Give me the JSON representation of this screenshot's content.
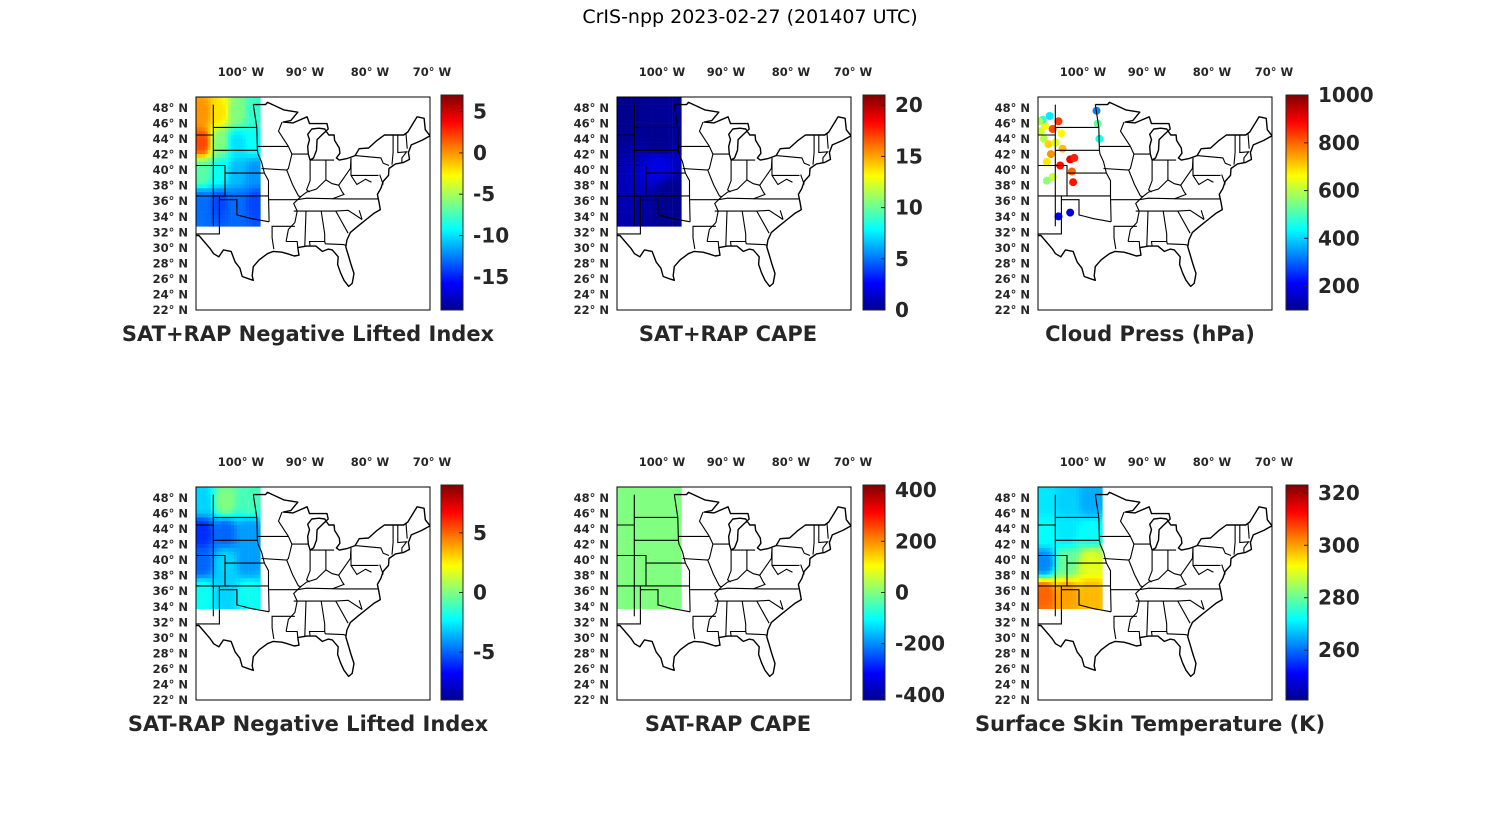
{
  "figure": {
    "title": "CrIS-npp 2023-02-27 (201407 UTC)"
  },
  "colormap": {
    "name": "jet",
    "stops": [
      "#00008f",
      "#0000ff",
      "#0080ff",
      "#00ffff",
      "#80ff80",
      "#ffff00",
      "#ff8000",
      "#ff0000",
      "#800000"
    ]
  },
  "chart_data": [
    {
      "type": "heatmap",
      "title": "SAT+RAP Negative Lifted Index",
      "map_extent": {
        "lon": [
          -107,
          -67
        ],
        "lat": [
          22,
          50
        ]
      },
      "x_ticks": [
        "100° W",
        "90° W",
        "80° W",
        "70° W"
      ],
      "y_ticks": [
        "48° N",
        "46° N",
        "44° N",
        "42° N",
        "40° N",
        "38° N",
        "36° N",
        "34° N",
        "32° N",
        "30° N",
        "28° N",
        "26° N",
        "24° N",
        "22° N"
      ],
      "colorbar": {
        "range": [
          -19,
          7
        ],
        "ticks": [
          5,
          0,
          -5,
          -10,
          -15
        ]
      },
      "data_region": {
        "lon": [
          -107,
          -96
        ],
        "lat": [
          33,
          50
        ]
      },
      "field_samples": [
        {
          "lon": -106,
          "lat": 48,
          "value": 0
        },
        {
          "lon": -103,
          "lat": 48,
          "value": -2
        },
        {
          "lon": -100,
          "lat": 48,
          "value": -6
        },
        {
          "lon": -97,
          "lat": 48,
          "value": -8
        },
        {
          "lon": -106,
          "lat": 44,
          "value": 2
        },
        {
          "lon": -103,
          "lat": 44,
          "value": -6
        },
        {
          "lon": -100,
          "lat": 44,
          "value": -10
        },
        {
          "lon": -97,
          "lat": 44,
          "value": -9
        },
        {
          "lon": -106,
          "lat": 40,
          "value": -7
        },
        {
          "lon": -103,
          "lat": 40,
          "value": -9
        },
        {
          "lon": -100,
          "lat": 40,
          "value": -11
        },
        {
          "lon": -97,
          "lat": 40,
          "value": -12
        },
        {
          "lon": -106,
          "lat": 36,
          "value": -13
        },
        {
          "lon": -103,
          "lat": 36,
          "value": -14
        },
        {
          "lon": -100,
          "lat": 36,
          "value": -13
        },
        {
          "lon": -97,
          "lat": 36,
          "value": -14
        }
      ]
    },
    {
      "type": "heatmap",
      "title": "SAT+RAP CAPE",
      "map_extent": {
        "lon": [
          -107,
          -67
        ],
        "lat": [
          22,
          50
        ]
      },
      "x_ticks": [
        "100° W",
        "90° W",
        "80° W",
        "70° W"
      ],
      "y_ticks": [
        "48° N",
        "46° N",
        "44° N",
        "42° N",
        "40° N",
        "38° N",
        "36° N",
        "34° N",
        "32° N",
        "30° N",
        "28° N",
        "26° N",
        "24° N",
        "22° N"
      ],
      "colorbar": {
        "range": [
          0,
          21
        ],
        "ticks": [
          20,
          15,
          10,
          5,
          0
        ]
      },
      "data_region": {
        "lon": [
          -107,
          -96
        ],
        "lat": [
          33,
          50
        ]
      },
      "field_samples": [
        {
          "lon": -106,
          "lat": 48,
          "value": 0
        },
        {
          "lon": -100,
          "lat": 44,
          "value": 0
        },
        {
          "lon": -100,
          "lat": 41,
          "value": 2
        },
        {
          "lon": -98,
          "lat": 37,
          "value": 0
        }
      ]
    },
    {
      "type": "scatter",
      "title": "Cloud Press (hPa)",
      "map_extent": {
        "lon": [
          -107,
          -67
        ],
        "lat": [
          22,
          50
        ]
      },
      "x_ticks": [
        "100° W",
        "90° W",
        "80° W",
        "70° W"
      ],
      "y_ticks": [
        "48° N",
        "46° N",
        "44° N",
        "42° N",
        "40° N",
        "38° N",
        "36° N",
        "34° N",
        "32° N",
        "30° N",
        "28° N",
        "26° N",
        "24° N",
        "22° N"
      ],
      "colorbar": {
        "range": [
          100,
          1000
        ],
        "ticks": [
          1000,
          800,
          600,
          400,
          200
        ]
      },
      "points": [
        {
          "lon": -106.5,
          "lat": 45.5,
          "value": 620
        },
        {
          "lon": -105.8,
          "lat": 46.2,
          "value": 650
        },
        {
          "lon": -104.5,
          "lat": 45.8,
          "value": 820
        },
        {
          "lon": -106.0,
          "lat": 44.5,
          "value": 600
        },
        {
          "lon": -105.2,
          "lat": 43.8,
          "value": 700
        },
        {
          "lon": -104.0,
          "lat": 44.0,
          "value": 640
        },
        {
          "lon": -103.0,
          "lat": 45.2,
          "value": 660
        },
        {
          "lon": -103.5,
          "lat": 46.8,
          "value": 840
        },
        {
          "lon": -102.8,
          "lat": 43.2,
          "value": 720
        },
        {
          "lon": -104.8,
          "lat": 42.5,
          "value": 760
        },
        {
          "lon": -105.5,
          "lat": 41.5,
          "value": 680
        },
        {
          "lon": -103.2,
          "lat": 41.0,
          "value": 880
        },
        {
          "lon": -101.5,
          "lat": 41.8,
          "value": 900
        },
        {
          "lon": -100.8,
          "lat": 42.0,
          "value": 860
        },
        {
          "lon": -101.2,
          "lat": 40.2,
          "value": 800
        },
        {
          "lon": -101.0,
          "lat": 38.8,
          "value": 870
        },
        {
          "lon": -104.5,
          "lat": 39.5,
          "value": 620
        },
        {
          "lon": -105.5,
          "lat": 39.0,
          "value": 560
        },
        {
          "lon": -97.0,
          "lat": 48.2,
          "value": 330
        },
        {
          "lon": -96.8,
          "lat": 46.5,
          "value": 520
        },
        {
          "lon": -96.5,
          "lat": 44.5,
          "value": 460
        },
        {
          "lon": -105.0,
          "lat": 47.5,
          "value": 420
        },
        {
          "lon": -106.2,
          "lat": 47.0,
          "value": 470
        },
        {
          "lon": -106.8,
          "lat": 46.8,
          "value": 590
        },
        {
          "lon": -101.5,
          "lat": 34.8,
          "value": 180
        },
        {
          "lon": -103.5,
          "lat": 34.3,
          "value": 200
        }
      ]
    },
    {
      "type": "heatmap",
      "title": "SAT-RAP Negative Lifted Index",
      "map_extent": {
        "lon": [
          -107,
          -67
        ],
        "lat": [
          22,
          50
        ]
      },
      "x_ticks": [
        "100° W",
        "90° W",
        "80° W",
        "70° W"
      ],
      "y_ticks": [
        "48° N",
        "46° N",
        "44° N",
        "42° N",
        "40° N",
        "38° N",
        "36° N",
        "34° N",
        "32° N",
        "30° N",
        "28° N",
        "26° N",
        "24° N",
        "22° N"
      ],
      "colorbar": {
        "range": [
          -9,
          9
        ],
        "ticks": [
          5,
          0,
          -5
        ]
      },
      "data_region": {
        "lon": [
          -107,
          -96
        ],
        "lat": [
          34,
          50
        ]
      },
      "field_samples": [
        {
          "lon": -106,
          "lat": 48,
          "value": -3
        },
        {
          "lon": -102,
          "lat": 48,
          "value": 0
        },
        {
          "lon": -98,
          "lat": 48,
          "value": -1
        },
        {
          "lon": -106,
          "lat": 44,
          "value": -6
        },
        {
          "lon": -102,
          "lat": 44,
          "value": -5
        },
        {
          "lon": -98,
          "lat": 44,
          "value": -4
        },
        {
          "lon": -106,
          "lat": 40,
          "value": -5
        },
        {
          "lon": -102,
          "lat": 40,
          "value": -3
        },
        {
          "lon": -98,
          "lat": 40,
          "value": -4
        },
        {
          "lon": -106,
          "lat": 36,
          "value": -2
        },
        {
          "lon": -102,
          "lat": 36,
          "value": -3
        },
        {
          "lon": -98,
          "lat": 36,
          "value": -2
        }
      ]
    },
    {
      "type": "heatmap",
      "title": "SAT-RAP CAPE",
      "map_extent": {
        "lon": [
          -107,
          -67
        ],
        "lat": [
          22,
          50
        ]
      },
      "x_ticks": [
        "100° W",
        "90° W",
        "80° W",
        "70° W"
      ],
      "y_ticks": [
        "48° N",
        "46° N",
        "44° N",
        "42° N",
        "40° N",
        "38° N",
        "36° N",
        "34° N",
        "32° N",
        "30° N",
        "28° N",
        "26° N",
        "24° N",
        "22° N"
      ],
      "colorbar": {
        "range": [
          -420,
          420
        ],
        "ticks": [
          400,
          200,
          0,
          -200,
          -400
        ]
      },
      "data_region": {
        "lon": [
          -107,
          -96
        ],
        "lat": [
          34,
          50
        ]
      },
      "field_samples": [
        {
          "lon": -106,
          "lat": 48,
          "value": 0
        },
        {
          "lon": -100,
          "lat": 44,
          "value": 0
        },
        {
          "lon": -102,
          "lat": 38,
          "value": 0
        },
        {
          "lon": -98,
          "lat": 36,
          "value": 0
        }
      ]
    },
    {
      "type": "heatmap",
      "title": "Surface Skin Temperature (K)",
      "map_extent": {
        "lon": [
          -107,
          -67
        ],
        "lat": [
          22,
          50
        ]
      },
      "x_ticks": [
        "100° W",
        "90° W",
        "80° W",
        "70° W"
      ],
      "y_ticks": [
        "48° N",
        "46° N",
        "44° N",
        "42° N",
        "40° N",
        "38° N",
        "36° N",
        "34° N",
        "32° N",
        "30° N",
        "28° N",
        "26° N",
        "24° N",
        "22° N"
      ],
      "colorbar": {
        "range": [
          241,
          323
        ],
        "ticks": [
          320,
          300,
          280,
          260
        ]
      },
      "data_region": {
        "lon": [
          -107,
          -96
        ],
        "lat": [
          34,
          50
        ]
      },
      "field_samples": [
        {
          "lon": -106,
          "lat": 48,
          "value": 270
        },
        {
          "lon": -102,
          "lat": 48,
          "value": 268
        },
        {
          "lon": -98,
          "lat": 48,
          "value": 265
        },
        {
          "lon": -106,
          "lat": 44,
          "value": 272
        },
        {
          "lon": -102,
          "lat": 44,
          "value": 270
        },
        {
          "lon": -98,
          "lat": 44,
          "value": 272
        },
        {
          "lon": -106,
          "lat": 40,
          "value": 262
        },
        {
          "lon": -102,
          "lat": 40,
          "value": 280
        },
        {
          "lon": -98,
          "lat": 40,
          "value": 290
        },
        {
          "lon": -106,
          "lat": 36,
          "value": 305
        },
        {
          "lon": -102,
          "lat": 36,
          "value": 300
        },
        {
          "lon": -98,
          "lat": 36,
          "value": 298
        }
      ]
    }
  ]
}
